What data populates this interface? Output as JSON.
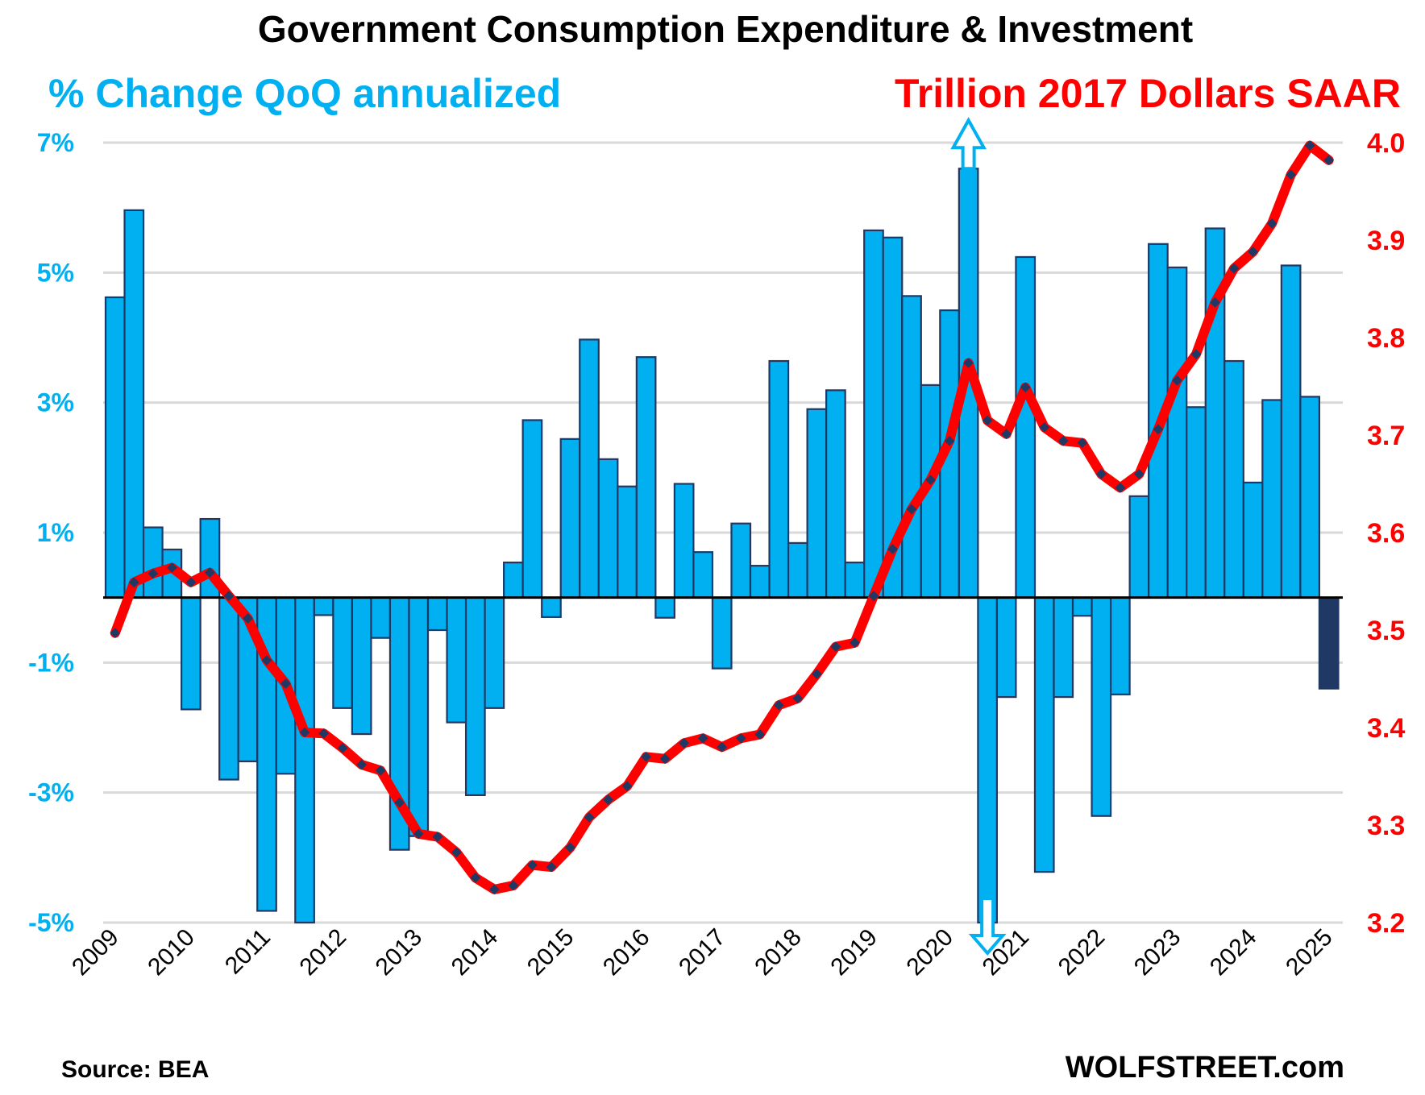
{
  "colors": {
    "bar_fill": "#00B0F0",
    "bar_stroke": "#1F3864",
    "last_bar_fill": "#203864",
    "line": "#FF0000",
    "marker": "#203864",
    "left_axis_text": "#00B0F0",
    "right_axis_text": "#FF0000",
    "grid": "#D9D9D9",
    "zero_line": "#000000",
    "arrow": "#00B0F0"
  },
  "chart_data": {
    "type": "bar+line",
    "title": "Government Consumption Expenditure & Investment",
    "left_axis_title": "% Change QoQ annualized",
    "right_axis_title": "Trillion 2017 Dollars SAAR",
    "left_ylim": [
      -5,
      7
    ],
    "right_ylim": [
      3.2,
      4.0
    ],
    "left_ticks": [
      "7%",
      "5%",
      "3%",
      "1%",
      "-1%",
      "-3%",
      "-5%"
    ],
    "left_tick_values": [
      7,
      5,
      3,
      1,
      -1,
      -3,
      -5
    ],
    "right_ticks": [
      "4.0",
      "3.9",
      "3.8",
      "3.7",
      "3.6",
      "3.5",
      "3.4",
      "3.3",
      "3.2"
    ],
    "right_tick_values": [
      4.0,
      3.9,
      3.8,
      3.7,
      3.6,
      3.5,
      3.4,
      3.3,
      3.2
    ],
    "grid": true,
    "x_tick_labels": [
      "2009",
      "2010",
      "2011",
      "2012",
      "2013",
      "2014",
      "2015",
      "2016",
      "2017",
      "2018",
      "2019",
      "2020",
      "2021",
      "2022",
      "2023",
      "2024",
      "2025"
    ],
    "x_start": "2009Q1",
    "x_end": "2025Q1",
    "periods_per_year": 4,
    "series": [
      {
        "name": "% Change QoQ annualized",
        "axis": "left",
        "kind": "bar",
        "values": [
          4.62,
          5.96,
          1.08,
          0.74,
          -1.72,
          1.21,
          -2.8,
          -2.52,
          -4.82,
          -2.71,
          -5.0,
          -0.27,
          -1.7,
          -2.1,
          -0.62,
          -3.88,
          -3.67,
          -0.5,
          -1.92,
          -3.04,
          -1.7,
          0.54,
          2.73,
          -0.3,
          2.44,
          3.97,
          2.13,
          1.71,
          3.7,
          -0.31,
          1.75,
          0.7,
          -1.09,
          1.14,
          0.49,
          3.64,
          0.84,
          2.9,
          3.19,
          0.54,
          5.65,
          5.54,
          4.64,
          3.27,
          4.42,
          7.0,
          -5.0,
          -1.53,
          5.24,
          -4.22,
          -1.53,
          -0.28,
          -3.36,
          -1.49,
          1.56,
          5.44,
          5.08,
          2.93,
          5.68,
          3.64,
          1.77,
          3.04,
          5.11,
          3.09,
          -1.4
        ],
        "off_scale_up_index": [
          45
        ],
        "off_scale_down_index": [
          46
        ],
        "highlight_last": true
      },
      {
        "name": "Trillion 2017 Dollars SAAR",
        "axis": "right",
        "kind": "line",
        "values": [
          3.497,
          3.549,
          3.558,
          3.564,
          3.549,
          3.559,
          3.535,
          3.512,
          3.469,
          3.445,
          3.395,
          3.394,
          3.379,
          3.362,
          3.356,
          3.323,
          3.291,
          3.288,
          3.272,
          3.246,
          3.234,
          3.238,
          3.259,
          3.257,
          3.277,
          3.308,
          3.326,
          3.34,
          3.37,
          3.368,
          3.384,
          3.389,
          3.38,
          3.389,
          3.393,
          3.423,
          3.43,
          3.455,
          3.483,
          3.487,
          3.535,
          3.583,
          3.624,
          3.654,
          3.694,
          3.774,
          3.715,
          3.701,
          3.749,
          3.708,
          3.694,
          3.692,
          3.66,
          3.646,
          3.66,
          3.706,
          3.756,
          3.783,
          3.836,
          3.871,
          3.888,
          3.917,
          3.967,
          3.997,
          3.982
        ]
      }
    ],
    "source": "Source: BEA",
    "credit": "WOLFSTREET.com"
  }
}
